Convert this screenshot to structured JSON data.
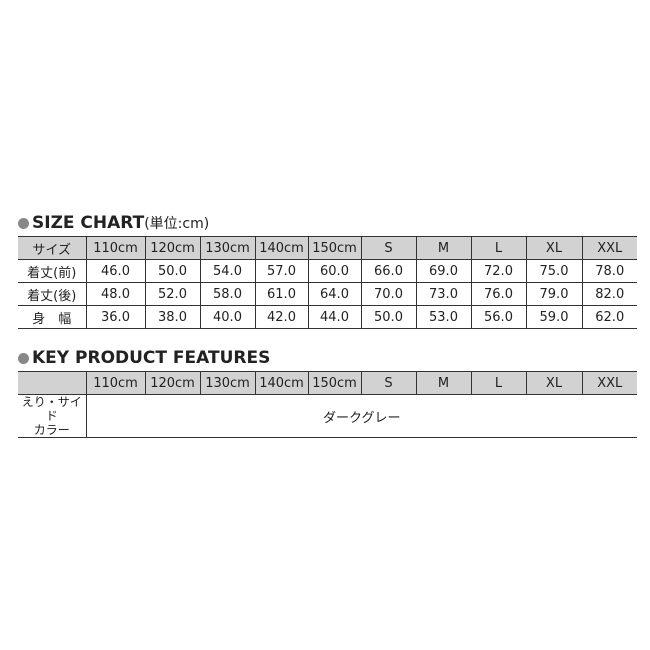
{
  "size_chart": {
    "title": "SIZE CHART",
    "unit": "(単位:cm)",
    "header": [
      "サイズ",
      "110cm",
      "120cm",
      "130cm",
      "140cm",
      "150cm",
      "S",
      "M",
      "L",
      "XL",
      "XXL"
    ],
    "rows": [
      [
        "着丈(前)",
        "46.0",
        "50.0",
        "54.0",
        "57.0",
        "60.0",
        "66.0",
        "69.0",
        "72.0",
        "75.0",
        "78.0"
      ],
      [
        "着丈(後)",
        "48.0",
        "52.0",
        "58.0",
        "61.0",
        "64.0",
        "70.0",
        "73.0",
        "76.0",
        "79.0",
        "82.0"
      ],
      [
        "身　幅",
        "36.0",
        "38.0",
        "40.0",
        "42.0",
        "44.0",
        "50.0",
        "53.0",
        "56.0",
        "59.0",
        "62.0"
      ]
    ]
  },
  "features": {
    "title": "KEY PRODUCT FEATURES",
    "header": [
      "",
      "110cm",
      "120cm",
      "130cm",
      "140cm",
      "150cm",
      "S",
      "M",
      "L",
      "XL",
      "XXL"
    ],
    "row_label_line1": "えり・サイド",
    "row_label_line2": "カラー",
    "value": "ダークグレー"
  }
}
